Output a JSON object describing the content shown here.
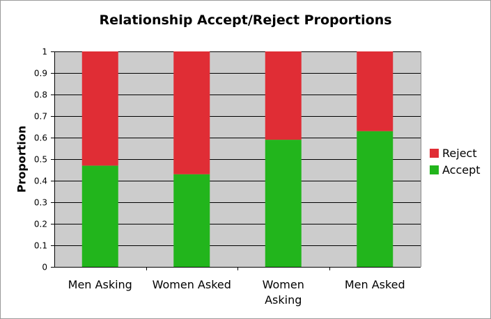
{
  "chart_data": {
    "type": "bar",
    "stacked": true,
    "title": "Relationship Accept/Reject Proportions",
    "ylabel": "Proportion",
    "xlabel": "",
    "ylim": [
      0,
      1
    ],
    "yticks": [
      "0",
      "0.1",
      "0.2",
      "0.3",
      "0.4",
      "0.5",
      "0.6",
      "0.7",
      "0.8",
      "0.9",
      "1"
    ],
    "categories": [
      [
        "Men Asking"
      ],
      [
        "Women Asked"
      ],
      [
        "Women",
        "Asking"
      ],
      [
        "Men Asked"
      ]
    ],
    "series": [
      {
        "name": "Accept",
        "color": "#22b51c",
        "values": [
          0.47,
          0.43,
          0.59,
          0.63
        ]
      },
      {
        "name": "Reject",
        "color": "#e02d35",
        "values": [
          0.53,
          0.57,
          0.41,
          0.37
        ]
      }
    ],
    "legend": [
      {
        "label": "Reject",
        "color": "#e02d35"
      },
      {
        "label": "Accept",
        "color": "#22b51c"
      }
    ],
    "grid": true,
    "legend_position": "right",
    "plot_background": "#cccccc"
  }
}
